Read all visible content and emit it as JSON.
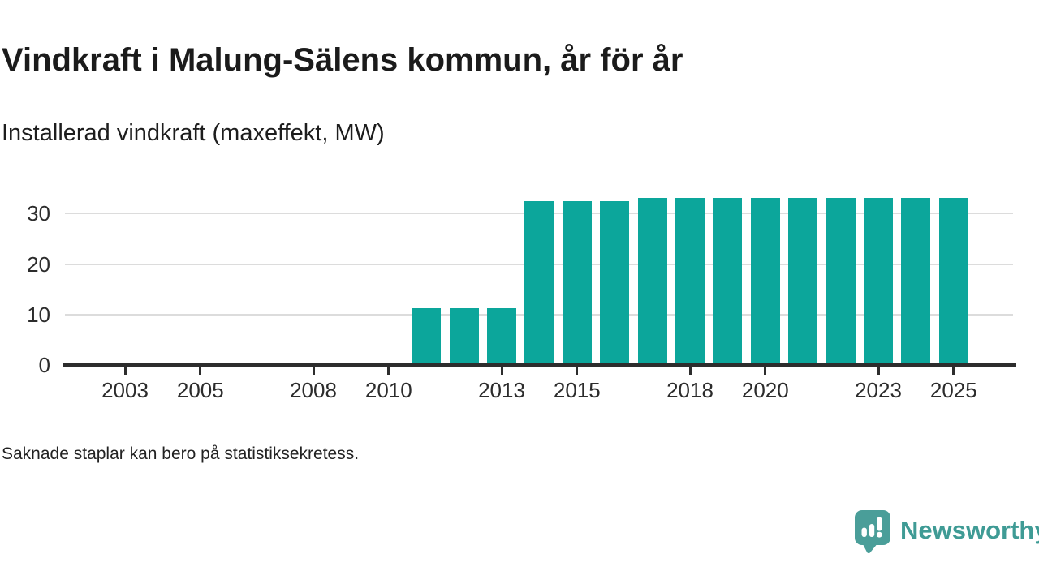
{
  "chart_data": {
    "type": "bar",
    "title": "Vindkraft i Malung-Sälens kommun, år för år",
    "subtitle": "Installerad vindkraft (maxeffekt, MW)",
    "footnote": "Saknade staplar kan bero på statistiksekretess.",
    "unit": "MW",
    "categories": [
      2002,
      2003,
      2004,
      2005,
      2006,
      2007,
      2008,
      2009,
      2010,
      2011,
      2012,
      2013,
      2014,
      2015,
      2016,
      2017,
      2018,
      2019,
      2020,
      2021,
      2022,
      2023,
      2024,
      2025
    ],
    "values": [
      null,
      null,
      null,
      null,
      null,
      null,
      null,
      null,
      null,
      11,
      11,
      11,
      32.1,
      32.1,
      32.1,
      32.7,
      32.7,
      32.7,
      32.7,
      32.7,
      32.7,
      32.7,
      32.7,
      32.7
    ],
    "x_tick_years": [
      2003,
      2005,
      2008,
      2010,
      2013,
      2015,
      2018,
      2020,
      2023,
      2025
    ],
    "y_ticks": [
      0,
      10,
      20,
      30
    ],
    "ylim": [
      0,
      33.7
    ],
    "grid": true,
    "legend": false,
    "bar_color": "#0ca69b",
    "axis_color": "#2d2d2d",
    "grid_color": "#dcdcdc"
  },
  "branding": {
    "logo_text": "Newsworthy",
    "logo_text_color": "#3f9b95",
    "icon_color": "#4a9e99",
    "icon_name": "newsworthy-speech-bubble-bar-chart-icon"
  }
}
